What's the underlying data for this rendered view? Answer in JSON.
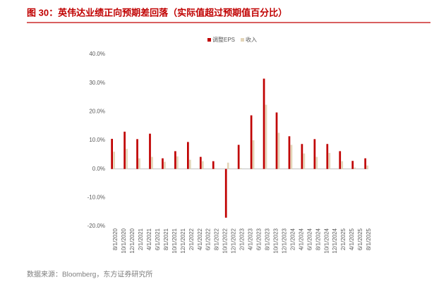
{
  "chart_data": {
    "type": "bar",
    "title": "图 30：英伟达业绩正向预期差回落（实际值超过预期值百分比）",
    "source": "数据来源：Bloomberg，东方证券研究所",
    "categories": [
      "8/1/2020",
      null,
      "10/1/2020",
      null,
      "12/1/2020",
      null,
      "2/1/2021",
      null,
      "4/1/2021",
      null,
      "6/1/2021",
      null,
      "8/1/2021",
      null,
      "10/1/2021",
      null,
      "12/1/2021",
      null,
      "2/1/2022",
      null,
      "4/1/2022",
      null,
      "6/1/2022",
      null,
      "8/1/2022",
      null,
      "10/1/2022",
      null,
      "12/1/2022",
      null,
      "2/1/2023",
      null,
      "4/1/2023",
      null,
      "6/1/2023",
      null,
      "8/1/2023",
      null,
      "10/1/2023",
      null,
      "12/1/2023",
      null,
      "2/1/2024",
      null,
      "4/1/2024",
      null,
      "6/1/2024",
      null,
      "8/1/2024",
      null,
      "10/1/2024",
      null,
      "12/1/2024",
      null,
      "2/1/2025",
      null,
      "4/1/2025",
      null,
      "6/1/2025",
      null,
      "8/1/2025"
    ],
    "series": [
      {
        "name": "调整EPS",
        "color": "#c00000",
        "values": [
          10.5,
          null,
          null,
          13,
          null,
          null,
          10.4,
          null,
          null,
          12.3,
          null,
          null,
          3.7,
          null,
          null,
          6.2,
          null,
          null,
          9.4,
          null,
          null,
          4.2,
          null,
          null,
          2.7,
          null,
          null,
          -17,
          null,
          null,
          8.4,
          null,
          null,
          18.7,
          null,
          null,
          31.5,
          null,
          null,
          19.7,
          null,
          null,
          11.4,
          null,
          null,
          8.7,
          null,
          null,
          10.4,
          null,
          null,
          8.7,
          null,
          null,
          6.2,
          null,
          null,
          2.8,
          null,
          null,
          3.7
        ]
      },
      {
        "name": "收入",
        "color": "#e3d5b8",
        "values": [
          6,
          null,
          null,
          7,
          null,
          null,
          3.7,
          null,
          null,
          4.2,
          null,
          null,
          2.5,
          null,
          null,
          4.4,
          null,
          null,
          3.2,
          null,
          null,
          2.7,
          null,
          null,
          0.3,
          null,
          null,
          2.2,
          null,
          null,
          0.3,
          null,
          null,
          10,
          null,
          null,
          22.4,
          null,
          null,
          12.6,
          null,
          null,
          8.4,
          null,
          null,
          5.4,
          null,
          null,
          4.2,
          null,
          null,
          5.6,
          null,
          null,
          2.7,
          null,
          null,
          0.5,
          null,
          null,
          1.2
        ]
      }
    ],
    "ylim": [
      -20,
      40
    ],
    "yticks": [
      {
        "value": -20,
        "label": "-20.0%"
      },
      {
        "value": -10,
        "label": "-10.0%"
      },
      {
        "value": 0,
        "label": "0.0%"
      },
      {
        "value": 10,
        "label": "10.0%"
      },
      {
        "value": 20,
        "label": "20.0%"
      },
      {
        "value": 30,
        "label": "30.0%"
      },
      {
        "value": 40,
        "label": "40.0%"
      }
    ],
    "grid": false,
    "legend": "top"
  }
}
